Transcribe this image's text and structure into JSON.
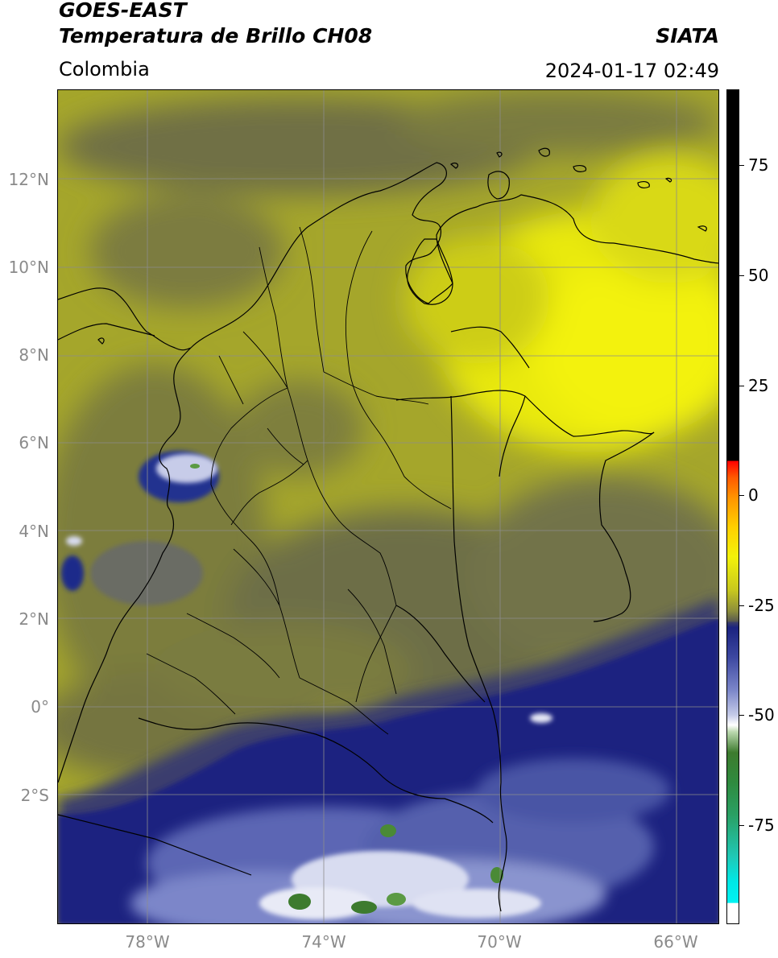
{
  "header": {
    "title_line1": "GOES-EAST",
    "title_line2": "Temperatura de Brillo CH08",
    "region": "Colombia",
    "agency": "SIATA",
    "timestamp": "2024-01-17 02:49"
  },
  "map": {
    "lat_ticks": [
      "12°N",
      "10°N",
      "8°N",
      "6°N",
      "4°N",
      "2°N",
      "0°",
      "2°S"
    ],
    "lon_ticks": [
      "78°W",
      "74°W",
      "70°W",
      "66°W"
    ],
    "colors": {
      "warm_yellow": "#f3f20a",
      "olive": "#a7a82a",
      "gray_olive": "#6e6f45",
      "dark_blue": "#1b2380",
      "light_blue": "#9aa4d8",
      "white": "#ffffff",
      "green": "#3d7b2e",
      "border_line": "#000000"
    }
  },
  "colorbar": {
    "tick_labels": [
      "75",
      "50",
      "25",
      "0",
      "-25",
      "-50",
      "-75"
    ],
    "segments": [
      "white",
      "cyan",
      "green",
      "white",
      "blue",
      "gray-olive",
      "yellow",
      "orange",
      "red",
      "black"
    ]
  }
}
